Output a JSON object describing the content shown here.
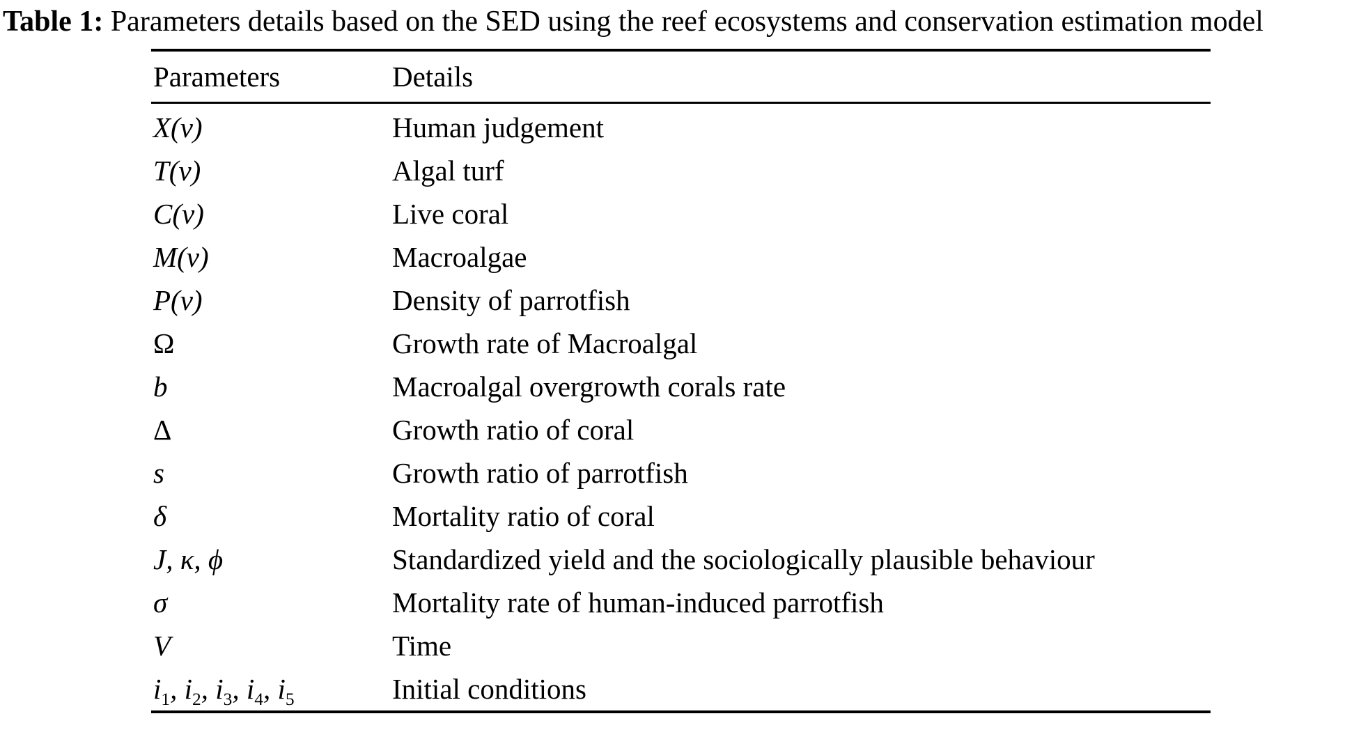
{
  "caption": {
    "label": "Table 1:",
    "text": " Parameters details based on the SED using the reef ecosystems and conservation estimation model"
  },
  "table": {
    "headers": [
      "Parameters",
      "Details"
    ],
    "rows": [
      {
        "param": "X(v)",
        "italic": true,
        "detail": "Human judgement"
      },
      {
        "param": "T(v)",
        "italic": true,
        "detail": "Algal turf"
      },
      {
        "param": "C(v)",
        "italic": true,
        "detail": "Live coral"
      },
      {
        "param": "M(v)",
        "italic": true,
        "detail": "Macroalgae"
      },
      {
        "param": "P(v)",
        "italic": true,
        "detail": "Density of parrotfish"
      },
      {
        "param": "Ω",
        "italic": false,
        "detail": "Growth rate of Macroalgal"
      },
      {
        "param": "b",
        "italic": true,
        "detail": "Macroalgal overgrowth corals rate"
      },
      {
        "param": "Δ",
        "italic": false,
        "detail": "Growth ratio of coral"
      },
      {
        "param": "s",
        "italic": true,
        "detail": "Growth ratio of parrotfish"
      },
      {
        "param": "δ",
        "italic": true,
        "detail": "Mortality ratio of coral"
      },
      {
        "param": "J, κ, ϕ",
        "italic": true,
        "detail": "Standardized yield and the sociologically plausible behaviour"
      },
      {
        "param": "σ",
        "italic": true,
        "detail": "Mortality rate of human-induced parrotfish"
      },
      {
        "param": "V",
        "italic": true,
        "detail": "Time"
      },
      {
        "param": "i_1, i_2, i_3, i_4, i_5",
        "italic": true,
        "detail": "Initial conditions"
      }
    ]
  }
}
